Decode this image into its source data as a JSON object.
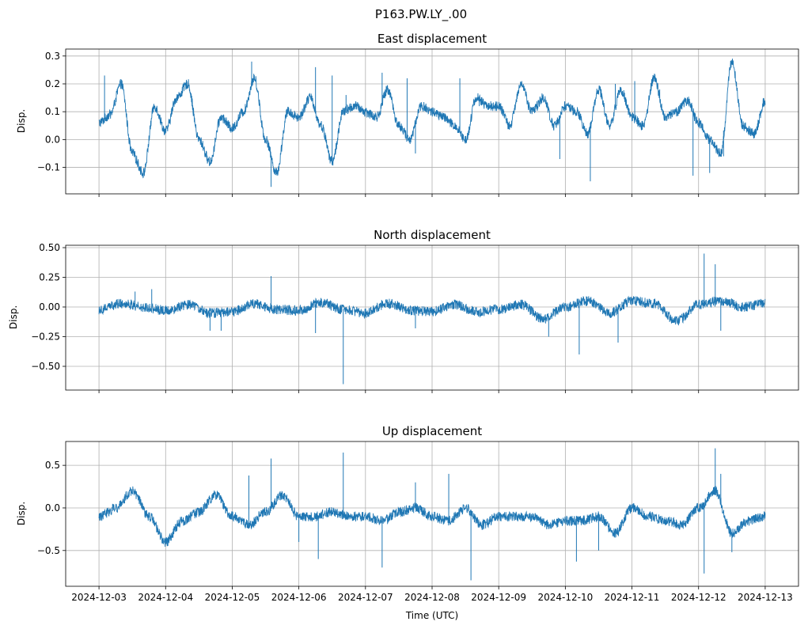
{
  "figure": {
    "suptitle": "P163.PW.LY_.00"
  },
  "chart_data": [
    {
      "type": "line",
      "title": "East displacement",
      "xlabel": "",
      "ylabel": "Disp.",
      "color": "#1f77b4",
      "grid": true,
      "x_range": [
        "2024-12-02T12:00",
        "2024-12-13T12:00"
      ],
      "ylim": [
        -0.195,
        0.325
      ],
      "yticks": [
        -0.1,
        0.0,
        0.1,
        0.2,
        0.3
      ],
      "ytick_labels": [
        "−0.1",
        "0.0",
        "0.1",
        "0.2",
        "0.3"
      ],
      "series": [
        {
          "x": [
            "2024-12-03T00:00",
            "2024-12-03T04:00",
            "2024-12-03T08:00",
            "2024-12-03T12:00",
            "2024-12-03T16:00",
            "2024-12-03T20:00",
            "2024-12-04T00:00",
            "2024-12-04T04:00",
            "2024-12-04T08:00",
            "2024-12-04T12:00",
            "2024-12-04T16:00",
            "2024-12-04T20:00",
            "2024-12-05T00:00",
            "2024-12-05T04:00",
            "2024-12-05T08:00",
            "2024-12-05T12:00",
            "2024-12-05T16:00",
            "2024-12-05T20:00",
            "2024-12-06T00:00",
            "2024-12-06T04:00",
            "2024-12-06T08:00",
            "2024-12-06T12:00",
            "2024-12-06T16:00",
            "2024-12-06T20:00",
            "2024-12-07T00:00",
            "2024-12-07T04:00",
            "2024-12-07T08:00",
            "2024-12-07T12:00",
            "2024-12-07T16:00",
            "2024-12-07T20:00",
            "2024-12-08T00:00",
            "2024-12-08T04:00",
            "2024-12-08T08:00",
            "2024-12-08T12:00",
            "2024-12-08T16:00",
            "2024-12-08T20:00",
            "2024-12-09T00:00",
            "2024-12-09T04:00",
            "2024-12-09T08:00",
            "2024-12-09T12:00",
            "2024-12-09T16:00",
            "2024-12-09T20:00",
            "2024-12-10T00:00",
            "2024-12-10T04:00",
            "2024-12-10T08:00",
            "2024-12-10T12:00",
            "2024-12-10T16:00",
            "2024-12-10T20:00",
            "2024-12-11T00:00",
            "2024-12-11T04:00",
            "2024-12-11T08:00",
            "2024-12-11T12:00",
            "2024-12-11T16:00",
            "2024-12-11T20:00",
            "2024-12-12T00:00",
            "2024-12-12T04:00",
            "2024-12-12T08:00",
            "2024-12-12T12:00",
            "2024-12-12T16:00",
            "2024-12-12T20:00",
            "2024-12-13T00:00"
          ],
          "y": [
            0.06,
            0.09,
            0.2,
            -0.05,
            -0.12,
            0.12,
            0.03,
            0.15,
            0.2,
            0.0,
            -0.08,
            0.08,
            0.04,
            0.1,
            0.22,
            0.0,
            -0.12,
            0.1,
            0.08,
            0.15,
            0.05,
            -0.08,
            0.1,
            0.12,
            0.1,
            0.08,
            0.18,
            0.05,
            0.0,
            0.12,
            0.1,
            0.08,
            0.05,
            0.0,
            0.15,
            0.12,
            0.12,
            0.05,
            0.2,
            0.1,
            0.15,
            0.05,
            0.12,
            0.1,
            0.02,
            0.18,
            0.05,
            0.18,
            0.08,
            0.05,
            0.22,
            0.08,
            0.1,
            0.14,
            0.06,
            0.0,
            -0.05,
            0.28,
            0.05,
            0.02,
            0.14
          ]
        }
      ],
      "spikes": [
        {
          "x": "2024-12-03T02:00",
          "y": 0.23
        },
        {
          "x": "2024-12-05T07:00",
          "y": 0.28
        },
        {
          "x": "2024-12-05T14:00",
          "y": -0.17
        },
        {
          "x": "2024-12-06T06:00",
          "y": 0.26
        },
        {
          "x": "2024-12-06T12:00",
          "y": 0.23
        },
        {
          "x": "2024-12-06T17:00",
          "y": 0.16
        },
        {
          "x": "2024-12-07T06:00",
          "y": 0.24
        },
        {
          "x": "2024-12-07T15:00",
          "y": 0.22
        },
        {
          "x": "2024-12-07T18:00",
          "y": -0.05
        },
        {
          "x": "2024-12-08T10:00",
          "y": 0.22
        },
        {
          "x": "2024-12-08T17:00",
          "y": 0.12
        },
        {
          "x": "2024-12-09T22:00",
          "y": -0.07
        },
        {
          "x": "2024-12-10T09:00",
          "y": -0.15
        },
        {
          "x": "2024-12-10T18:00",
          "y": 0.2
        },
        {
          "x": "2024-12-11T01:00",
          "y": 0.21
        },
        {
          "x": "2024-12-11T10:00",
          "y": 0.18
        },
        {
          "x": "2024-12-11T22:00",
          "y": -0.13
        },
        {
          "x": "2024-12-12T04:00",
          "y": -0.12
        },
        {
          "x": "2024-12-12T09:00",
          "y": -0.06
        }
      ]
    },
    {
      "type": "line",
      "title": "North displacement",
      "xlabel": "",
      "ylabel": "Disp.",
      "color": "#1f77b4",
      "grid": true,
      "x_range": [
        "2024-12-02T12:00",
        "2024-12-13T12:00"
      ],
      "ylim": [
        -0.7,
        0.52
      ],
      "yticks": [
        -0.5,
        -0.25,
        0.0,
        0.25,
        0.5
      ],
      "ytick_labels": [
        "−0.50",
        "−0.25",
        "0.00",
        "0.25",
        "0.50"
      ],
      "series": [
        {
          "x": [
            "2024-12-03T00:00",
            "2024-12-03T08:00",
            "2024-12-03T16:00",
            "2024-12-04T00:00",
            "2024-12-04T08:00",
            "2024-12-04T16:00",
            "2024-12-05T00:00",
            "2024-12-05T08:00",
            "2024-12-05T16:00",
            "2024-12-06T00:00",
            "2024-12-06T08:00",
            "2024-12-06T16:00",
            "2024-12-07T00:00",
            "2024-12-07T08:00",
            "2024-12-07T16:00",
            "2024-12-08T00:00",
            "2024-12-08T08:00",
            "2024-12-08T16:00",
            "2024-12-09T00:00",
            "2024-12-09T08:00",
            "2024-12-09T16:00",
            "2024-12-10T00:00",
            "2024-12-10T08:00",
            "2024-12-10T16:00",
            "2024-12-11T00:00",
            "2024-12-11T08:00",
            "2024-12-11T16:00",
            "2024-12-12T00:00",
            "2024-12-12T08:00",
            "2024-12-12T16:00",
            "2024-12-13T00:00"
          ],
          "y": [
            -0.02,
            0.03,
            0.0,
            -0.03,
            0.02,
            -0.05,
            -0.04,
            0.03,
            -0.02,
            -0.03,
            0.04,
            -0.02,
            -0.05,
            0.03,
            -0.03,
            -0.04,
            0.02,
            -0.04,
            -0.02,
            0.02,
            -0.1,
            0.0,
            0.05,
            -0.05,
            0.05,
            0.03,
            -0.12,
            0.02,
            0.05,
            0.0,
            0.03
          ]
        }
      ],
      "spikes": [
        {
          "x": "2024-12-03T13:00",
          "y": 0.13
        },
        {
          "x": "2024-12-03T19:00",
          "y": 0.15
        },
        {
          "x": "2024-12-04T16:00",
          "y": -0.2
        },
        {
          "x": "2024-12-04T20:00",
          "y": -0.2
        },
        {
          "x": "2024-12-05T14:00",
          "y": 0.26
        },
        {
          "x": "2024-12-06T06:00",
          "y": -0.22
        },
        {
          "x": "2024-12-06T16:00",
          "y": -0.65
        },
        {
          "x": "2024-12-07T18:00",
          "y": -0.18
        },
        {
          "x": "2024-12-09T18:00",
          "y": -0.25
        },
        {
          "x": "2024-12-10T05:00",
          "y": -0.4
        },
        {
          "x": "2024-12-10T19:00",
          "y": -0.3
        },
        {
          "x": "2024-12-12T02:00",
          "y": 0.45
        },
        {
          "x": "2024-12-12T06:00",
          "y": 0.36
        },
        {
          "x": "2024-12-12T08:00",
          "y": -0.2
        }
      ]
    },
    {
      "type": "line",
      "title": "Up displacement",
      "xlabel": "Time (UTC)",
      "ylabel": "Disp.",
      "color": "#1f77b4",
      "grid": true,
      "x_range": [
        "2024-12-02T12:00",
        "2024-12-13T12:00"
      ],
      "ylim": [
        -0.92,
        0.78
      ],
      "yticks": [
        -0.5,
        0.0,
        0.5
      ],
      "ytick_labels": [
        "−0.5",
        "0.0",
        "0.5"
      ],
      "xticks": [
        "2024-12-03",
        "2024-12-04",
        "2024-12-05",
        "2024-12-06",
        "2024-12-07",
        "2024-12-08",
        "2024-12-09",
        "2024-12-10",
        "2024-12-11",
        "2024-12-12",
        "2024-12-13"
      ],
      "series": [
        {
          "x": [
            "2024-12-03T00:00",
            "2024-12-03T06:00",
            "2024-12-03T12:00",
            "2024-12-03T18:00",
            "2024-12-04T00:00",
            "2024-12-04T06:00",
            "2024-12-04T12:00",
            "2024-12-04T18:00",
            "2024-12-05T00:00",
            "2024-12-05T06:00",
            "2024-12-05T12:00",
            "2024-12-05T18:00",
            "2024-12-06T00:00",
            "2024-12-06T06:00",
            "2024-12-06T12:00",
            "2024-12-06T18:00",
            "2024-12-07T00:00",
            "2024-12-07T06:00",
            "2024-12-07T12:00",
            "2024-12-07T18:00",
            "2024-12-08T00:00",
            "2024-12-08T06:00",
            "2024-12-08T12:00",
            "2024-12-08T18:00",
            "2024-12-09T00:00",
            "2024-12-09T06:00",
            "2024-12-09T12:00",
            "2024-12-09T18:00",
            "2024-12-10T00:00",
            "2024-12-10T06:00",
            "2024-12-10T12:00",
            "2024-12-10T18:00",
            "2024-12-11T00:00",
            "2024-12-11T06:00",
            "2024-12-11T12:00",
            "2024-12-11T18:00",
            "2024-12-12T00:00",
            "2024-12-12T06:00",
            "2024-12-12T12:00",
            "2024-12-12T18:00",
            "2024-12-13T00:00"
          ],
          "y": [
            -0.1,
            0.0,
            0.2,
            -0.1,
            -0.4,
            -0.15,
            -0.05,
            0.15,
            -0.1,
            -0.2,
            -0.05,
            0.15,
            -0.1,
            -0.1,
            -0.05,
            -0.1,
            -0.1,
            -0.15,
            -0.05,
            0.0,
            -0.1,
            -0.15,
            0.0,
            -0.2,
            -0.1,
            -0.1,
            -0.1,
            -0.2,
            -0.15,
            -0.15,
            -0.1,
            -0.3,
            0.0,
            -0.1,
            -0.15,
            -0.2,
            0.0,
            0.2,
            -0.3,
            -0.15,
            -0.1
          ]
        }
      ],
      "spikes": [
        {
          "x": "2024-12-05T06:00",
          "y": 0.38
        },
        {
          "x": "2024-12-05T14:00",
          "y": 0.58
        },
        {
          "x": "2024-12-06T00:00",
          "y": -0.4
        },
        {
          "x": "2024-12-06T07:00",
          "y": -0.6
        },
        {
          "x": "2024-12-06T16:00",
          "y": 0.65
        },
        {
          "x": "2024-12-07T06:00",
          "y": -0.7
        },
        {
          "x": "2024-12-07T18:00",
          "y": 0.3
        },
        {
          "x": "2024-12-08T06:00",
          "y": 0.4
        },
        {
          "x": "2024-12-08T14:00",
          "y": -0.85
        },
        {
          "x": "2024-12-10T04:00",
          "y": -0.63
        },
        {
          "x": "2024-12-10T12:00",
          "y": -0.5
        },
        {
          "x": "2024-12-12T02:00",
          "y": -0.77
        },
        {
          "x": "2024-12-12T06:00",
          "y": 0.7
        },
        {
          "x": "2024-12-12T08:00",
          "y": 0.4
        },
        {
          "x": "2024-12-12T12:00",
          "y": -0.52
        }
      ]
    }
  ]
}
